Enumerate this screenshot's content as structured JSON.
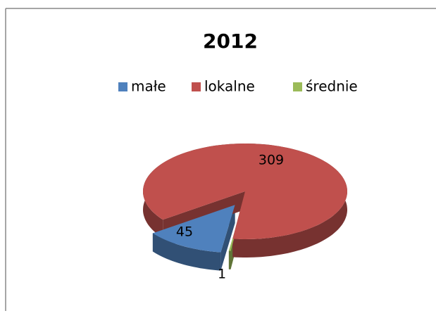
{
  "chart_data": {
    "type": "pie",
    "title": "2012",
    "categories": [
      "małe",
      "lokalne",
      "średnie"
    ],
    "values": [
      45,
      309,
      1
    ],
    "colors": [
      "#4f81bd",
      "#c0504d",
      "#9bbb59"
    ],
    "legend": "top"
  }
}
